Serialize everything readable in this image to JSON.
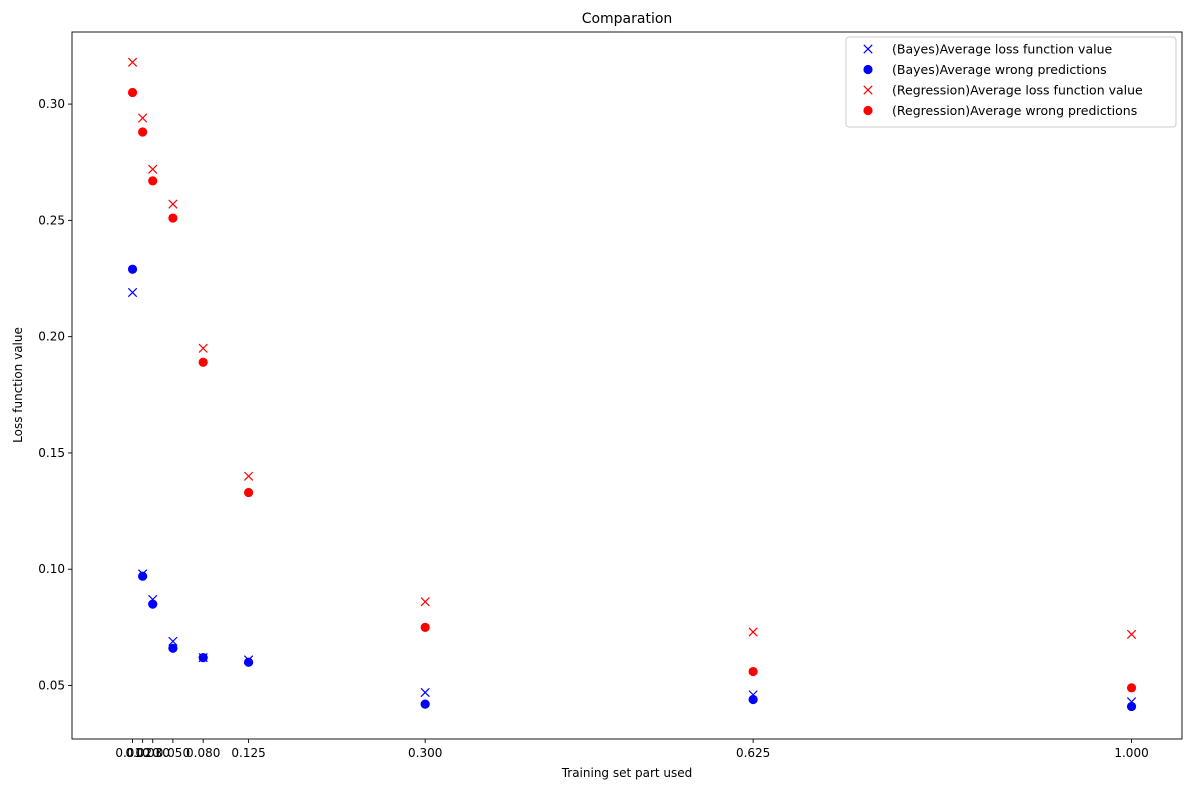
{
  "chart_data": {
    "type": "scatter",
    "title": "Comparation",
    "xlabel": "Training set part used",
    "ylabel": "Loss function value",
    "xlim": [
      -0.05,
      1.05
    ],
    "ylim": [
      0.027,
      0.331
    ],
    "x": [
      0.01,
      0.02,
      0.03,
      0.05,
      0.08,
      0.125,
      0.3,
      0.625,
      1.0
    ],
    "xtick_labels": [
      "0.010",
      "0.020",
      "0.030",
      "0.050",
      "0.080",
      "0.125",
      "0.300",
      "0.625",
      "1.000"
    ],
    "yticks": [
      0.05,
      0.1,
      0.15,
      0.2,
      0.25,
      0.3
    ],
    "ytick_labels": [
      "0.05",
      "0.10",
      "0.15",
      "0.20",
      "0.25",
      "0.30"
    ],
    "grid": false,
    "legend_position": "top-right",
    "series": [
      {
        "name": "(Bayes)Average loss function value",
        "marker": "x",
        "color": "#0000ff",
        "values": [
          0.219,
          0.098,
          0.087,
          0.069,
          0.062,
          0.061,
          0.047,
          0.046,
          0.043
        ]
      },
      {
        "name": "(Bayes)Average wrong predictions",
        "marker": "o",
        "color": "#0000ff",
        "values": [
          0.229,
          0.097,
          0.085,
          0.066,
          0.062,
          0.06,
          0.042,
          0.044,
          0.041
        ]
      },
      {
        "name": "(Regression)Average loss function value",
        "marker": "x",
        "color": "#ff0000",
        "values": [
          0.318,
          0.294,
          0.272,
          0.257,
          0.195,
          0.14,
          0.086,
          0.073,
          0.072
        ]
      },
      {
        "name": "(Regression)Average wrong predictions",
        "marker": "o",
        "color": "#ff0000",
        "values": [
          0.305,
          0.288,
          0.267,
          0.251,
          0.189,
          0.133,
          0.075,
          0.056,
          0.049
        ]
      }
    ]
  }
}
